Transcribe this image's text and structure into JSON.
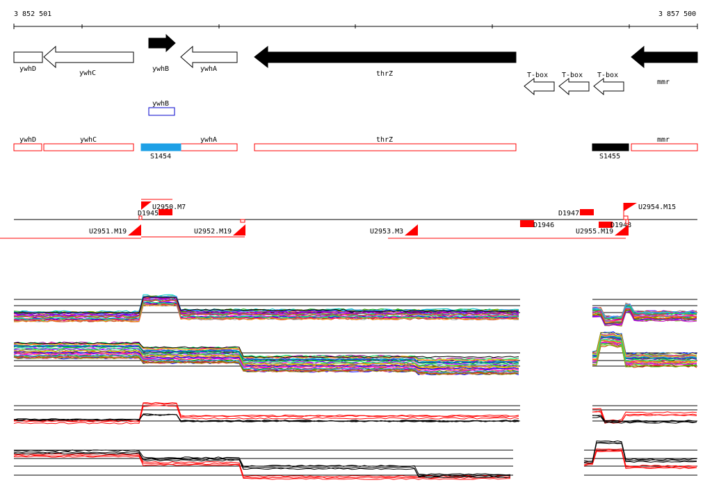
{
  "ruler": {
    "start_label": "3 852 501",
    "end_label": "3 857 500",
    "start_bp": 3852501,
    "end_bp": 3857500
  },
  "genes": [
    {
      "name": "ywhD",
      "strand": "-",
      "filled": false
    },
    {
      "name": "ywhC",
      "strand": "-",
      "filled": false
    },
    {
      "name": "ywhB",
      "strand": "+",
      "filled": true
    },
    {
      "name": "ywhA",
      "strand": "-",
      "filled": false
    },
    {
      "name": "thrZ",
      "strand": "-",
      "filled": true
    },
    {
      "name": "mmr",
      "strand": "-",
      "filled": true
    }
  ],
  "tboxes": [
    {
      "name": "T-box"
    },
    {
      "name": "T-box"
    },
    {
      "name": "T-box"
    }
  ],
  "plus_track": {
    "label": "ywhB"
  },
  "annotation_track": [
    {
      "name": "ywhD"
    },
    {
      "name": "ywhC"
    },
    {
      "name": "ywhA"
    },
    {
      "name": "thrZ"
    },
    {
      "name": "mmr"
    }
  ],
  "segments": [
    {
      "name": "S1454",
      "color": "#1ea0e6"
    },
    {
      "name": "S1455",
      "color": "#000000"
    }
  ],
  "upshifts": [
    {
      "name": "U2950.M7"
    },
    {
      "name": "U2951.M19"
    },
    {
      "name": "U2952.M19"
    },
    {
      "name": "U2953.M3"
    },
    {
      "name": "U2954.M15"
    },
    {
      "name": "U2955.M19"
    }
  ],
  "downshifts": [
    {
      "name": "D1945"
    },
    {
      "name": "D1946"
    },
    {
      "name": "D1947"
    },
    {
      "name": "D1948"
    }
  ],
  "colors": {
    "feature_red": "#ff0000",
    "segment_blue": "#1ea0e6",
    "plus_track_blue": "#0000cc"
  }
}
